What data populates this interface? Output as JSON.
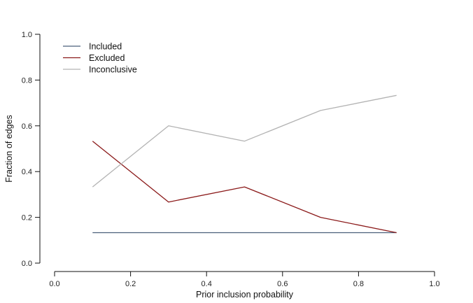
{
  "chart_data": {
    "type": "line",
    "title": "",
    "xlabel": "Prior inclusion probability",
    "ylabel": "Fraction of edges",
    "x": [
      0.1,
      0.3,
      0.5,
      0.7,
      0.9
    ],
    "xlim": [
      0.0,
      1.0
    ],
    "ylim": [
      0.0,
      1.0
    ],
    "xticks": [
      "0.0",
      "0.2",
      "0.4",
      "0.6",
      "0.8",
      "1.0"
    ],
    "yticks": [
      "0.0",
      "0.2",
      "0.4",
      "0.6",
      "0.8",
      "1.0"
    ],
    "grid": false,
    "legend_position": "top-left",
    "series": [
      {
        "name": "Included",
        "color": "#4a5f7a",
        "values": [
          0.133,
          0.133,
          0.133,
          0.133,
          0.133
        ]
      },
      {
        "name": "Excluded",
        "color": "#8b1a1a",
        "values": [
          0.533,
          0.267,
          0.333,
          0.2,
          0.133
        ]
      },
      {
        "name": "Inconclusive",
        "color": "#b3b3b3",
        "values": [
          0.333,
          0.6,
          0.533,
          0.667,
          0.733
        ]
      }
    ]
  }
}
